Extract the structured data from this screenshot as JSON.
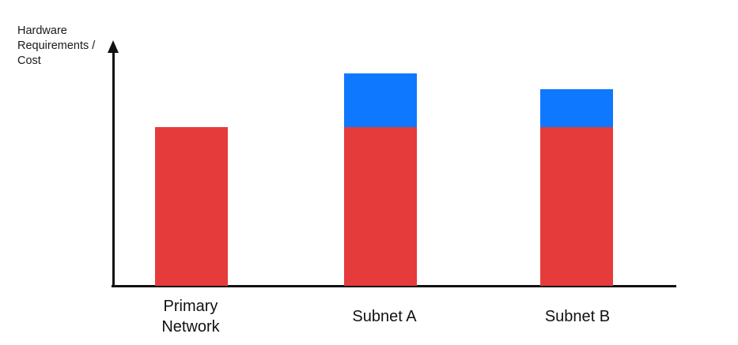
{
  "chart": {
    "y_axis_label": "Hardware\nRequirements /\nCost",
    "colors": {
      "bar_red": "#E63B3B",
      "bar_blue": "#0E78FF",
      "axis": "#111111",
      "text": "#1A1A1A"
    }
  },
  "chart_data": {
    "type": "bar",
    "subtype": "stacked-vertical",
    "title": "",
    "xlabel": "",
    "ylabel": "Hardware Requirements / Cost",
    "categories": [
      "Primary Network",
      "Subnet A",
      "Subnet B"
    ],
    "series": [
      {
        "name": "red-base-segment",
        "color": "#E63B3B",
        "values": [
          1.0,
          1.0,
          1.0
        ]
      },
      {
        "name": "blue-extra-segment",
        "color": "#0E78FF",
        "values": [
          0,
          0.34,
          0.24
        ]
      }
    ],
    "stack_totals": [
      1.0,
      1.34,
      1.24
    ],
    "value_units": "relative (no numeric y-axis; red base segment = 1.0)",
    "legend": "none",
    "grid": "off",
    "y_axis_style": "vertical line with upward arrow, no ticks",
    "x_axis_style": "plain horizontal line, no ticks"
  }
}
